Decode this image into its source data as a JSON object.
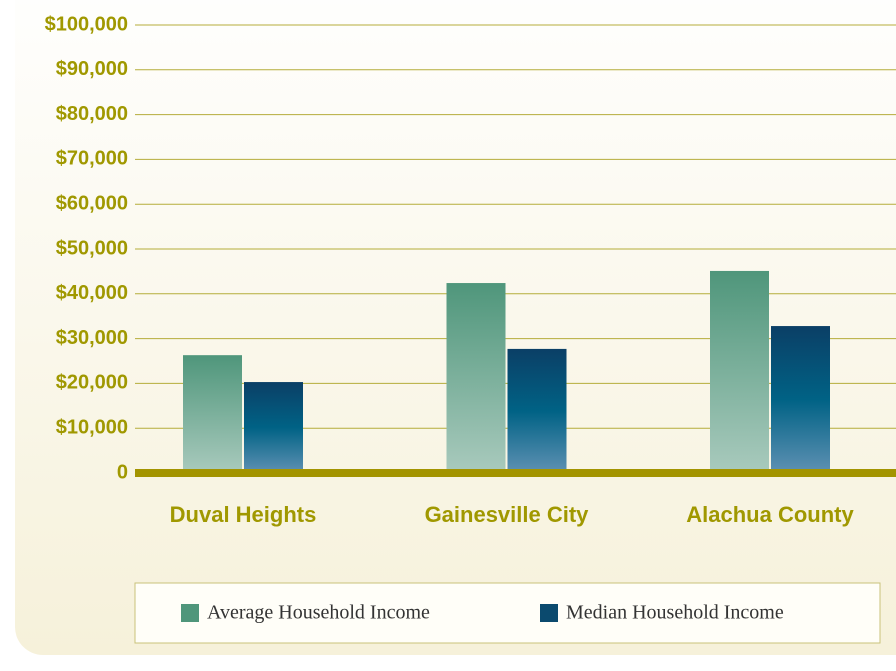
{
  "chart_data": {
    "type": "bar",
    "categories": [
      "Duval Heights",
      "Gainesville City",
      "Alachua County"
    ],
    "series": [
      {
        "name": "Average Household Income",
        "color": "#4f967b",
        "values": [
          26300,
          42400,
          45100
        ]
      },
      {
        "name": "Median Household Income",
        "color": "#0b4a6e",
        "values": [
          20300,
          27700,
          32800
        ]
      }
    ],
    "ylim": [
      0,
      100000
    ],
    "yticks": [
      0,
      {
        "value": 10000,
        "label": "$10,000"
      },
      {
        "value": 20000,
        "label": "$20,000"
      },
      {
        "value": 30000,
        "label": "$30,000"
      },
      {
        "value": 40000,
        "label": "$40,000"
      },
      {
        "value": 50000,
        "label": "$50,000"
      },
      {
        "value": 60000,
        "label": "$60,000"
      },
      {
        "value": 70000,
        "label": "$70,000"
      },
      {
        "value": 80000,
        "label": "$80,000"
      },
      {
        "value": 90000,
        "label": "$90,000"
      },
      {
        "value": 100000,
        "label": "$100,000"
      }
    ],
    "grid": true,
    "legend": "bottom"
  }
}
